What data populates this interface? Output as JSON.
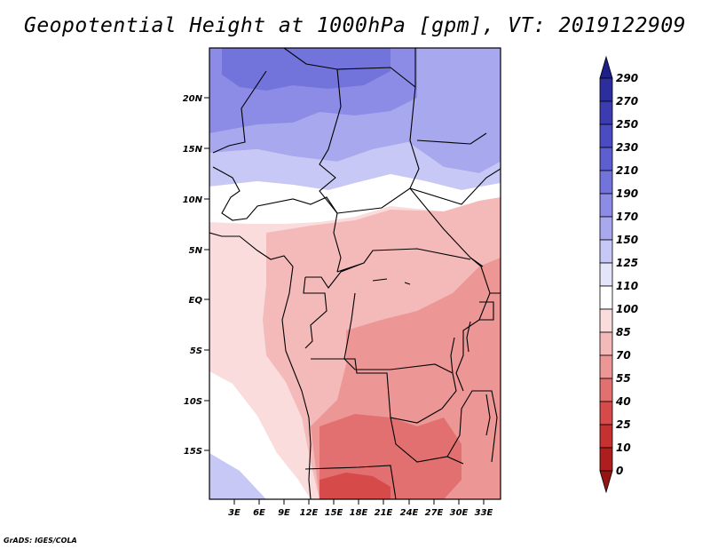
{
  "map": {
    "title": "Geopotential Height at 1000hPa [gpm], VT: 2019122909",
    "variable": "Geopotential Height at 1000hPa",
    "units": "gpm",
    "valid_time": "2019122909",
    "lat_labels": [
      "20N",
      "15N",
      "10N",
      "5N",
      "EQ",
      "5S",
      "10S",
      "15S"
    ],
    "lon_labels": [
      "3E",
      "6E",
      "9E",
      "12E",
      "15E",
      "18E",
      "21E",
      "24E",
      "27E",
      "30E",
      "33E"
    ],
    "credit": "GrADS: IGES/COLA"
  },
  "colorbar": {
    "levels": [
      "290",
      "270",
      "250",
      "230",
      "210",
      "190",
      "170",
      "150",
      "125",
      "110",
      "100",
      "85",
      "70",
      "55",
      "40",
      "25",
      "10",
      "0"
    ],
    "colors": [
      "#1f1f8a",
      "#2d2d9e",
      "#3c3cb0",
      "#4b4bc2",
      "#5e5ed0",
      "#7373dc",
      "#8c8ce6",
      "#a8a8ef",
      "#c8c8f6",
      "#e4e4fb",
      "#ffffff",
      "#fadcdc",
      "#f4b9b9",
      "#ec9696",
      "#e27070",
      "#d64a4a",
      "#c53030",
      "#ae1e1e",
      "#951515"
    ]
  }
}
